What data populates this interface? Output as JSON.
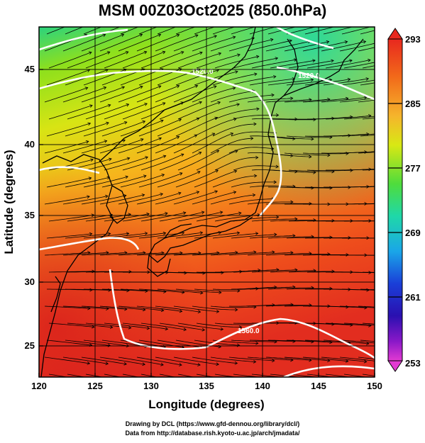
{
  "title": "MSM 00Z03Oct2025 (850.0hPa)",
  "map": {
    "lon_range": [
      120,
      150
    ],
    "lat_range": [
      22.5,
      47.6
    ],
    "x_label": "Longitude (degrees)",
    "y_label": "Latitude  (degrees)",
    "x_ticks": [
      "120",
      "125",
      "130",
      "135",
      "140",
      "145",
      "150"
    ],
    "y_ticks": [
      "25",
      "30",
      "35",
      "40",
      "45"
    ],
    "field": "temperature (K) with wind streamlines",
    "isolines": [
      "1520.0",
      "1520.0",
      "1560.0"
    ],
    "colors": {
      "contour": "#ffffff",
      "coast": "#000000",
      "grid": "#000000"
    }
  },
  "colorbar": {
    "ticks": [
      "293",
      "285",
      "277",
      "269",
      "261",
      "253"
    ],
    "min": 253,
    "max": 293
  },
  "credits": {
    "line1": "Drawing by DCL (https://www.gfd-dennou.org/library/dcl/)",
    "line2": "Data from http://database.rish.kyoto-u.ac.jp/arch/jmadata/"
  }
}
